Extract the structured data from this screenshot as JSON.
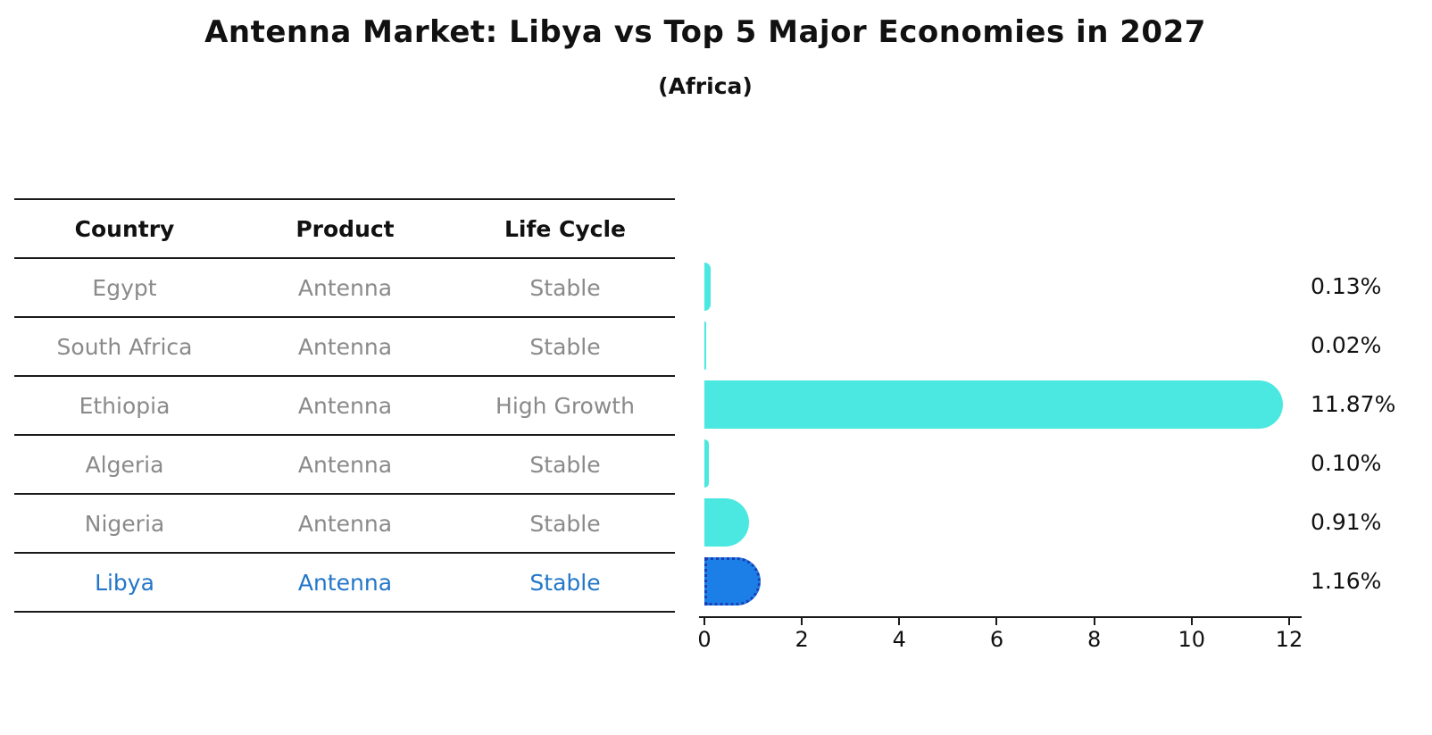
{
  "title": "Antenna Market: Libya vs Top 5 Major Economies in 2027",
  "subtitle": "(Africa)",
  "table": {
    "headers": [
      "Country",
      "Product",
      "Life Cycle"
    ],
    "rows": [
      {
        "country": "Egypt",
        "product": "Antenna",
        "life_cycle": "Stable",
        "highlight": false
      },
      {
        "country": "South Africa",
        "product": "Antenna",
        "life_cycle": "Stable",
        "highlight": false
      },
      {
        "country": "Ethiopia",
        "product": "Antenna",
        "life_cycle": "High Growth",
        "highlight": false
      },
      {
        "country": "Algeria",
        "product": "Antenna",
        "life_cycle": "Stable",
        "highlight": false
      },
      {
        "country": "Nigeria",
        "product": "Antenna",
        "life_cycle": "Stable",
        "highlight": false
      },
      {
        "country": "Libya",
        "product": "Antenna",
        "life_cycle": "Stable",
        "highlight": true
      }
    ]
  },
  "chart_data": {
    "type": "bar",
    "orientation": "horizontal",
    "title": "Antenna Market: Libya vs Top 5 Major Economies in 2027",
    "subtitle": "(Africa)",
    "categories": [
      "Egypt",
      "South Africa",
      "Ethiopia",
      "Algeria",
      "Nigeria",
      "Libya"
    ],
    "values": [
      0.13,
      0.02,
      11.87,
      0.1,
      0.91,
      1.16
    ],
    "value_labels": [
      "0.13%",
      "0.02%",
      "11.87%",
      "0.10%",
      "0.91%",
      "1.16%"
    ],
    "value_unit": "%",
    "xlabel": "",
    "ylabel": "",
    "xlim": [
      0,
      12.3
    ],
    "x_ticks": [
      0,
      2,
      4,
      6,
      8,
      10,
      12
    ],
    "grid": "off",
    "legend": "none",
    "highlight_index": 5,
    "bar_color": "#4ae8e0",
    "highlight_color": "#1c7fe8",
    "highlight_border_color": "#1a3fb4",
    "highlight_text_color": "#2376c8"
  }
}
